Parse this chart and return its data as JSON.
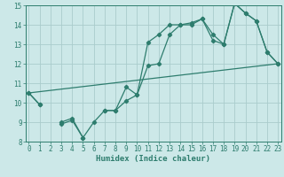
{
  "xlabel": "Humidex (Indice chaleur)",
  "bg_color": "#cce8e8",
  "grid_color": "#aacccc",
  "line_color": "#2e7d6e",
  "x_values": [
    0,
    1,
    2,
    3,
    4,
    5,
    6,
    7,
    8,
    9,
    10,
    11,
    12,
    13,
    14,
    15,
    16,
    17,
    18,
    19,
    20,
    21,
    22,
    23
  ],
  "line1_y": [
    10.5,
    9.9,
    null,
    9.0,
    9.2,
    8.2,
    null,
    9.6,
    9.6,
    10.8,
    10.4,
    13.1,
    13.5,
    14.0,
    14.0,
    14.1,
    14.3,
    13.5,
    13.0,
    15.1,
    14.6,
    14.2,
    12.6,
    12.0
  ],
  "line2_y": [
    10.5,
    9.9,
    null,
    8.9,
    9.1,
    8.2,
    9.0,
    9.6,
    9.6,
    10.1,
    10.4,
    11.9,
    12.0,
    13.5,
    14.0,
    14.0,
    14.3,
    13.2,
    13.0,
    15.1,
    14.6,
    14.2,
    12.6,
    12.0
  ],
  "trend_x": [
    0,
    23
  ],
  "trend_y": [
    10.5,
    12.0
  ],
  "ylim_min": 8,
  "ylim_max": 15,
  "yticks": [
    8,
    9,
    10,
    11,
    12,
    13,
    14,
    15
  ],
  "xticks": [
    0,
    1,
    2,
    3,
    4,
    5,
    6,
    7,
    8,
    9,
    10,
    11,
    12,
    13,
    14,
    15,
    16,
    17,
    18,
    19,
    20,
    21,
    22,
    23
  ]
}
